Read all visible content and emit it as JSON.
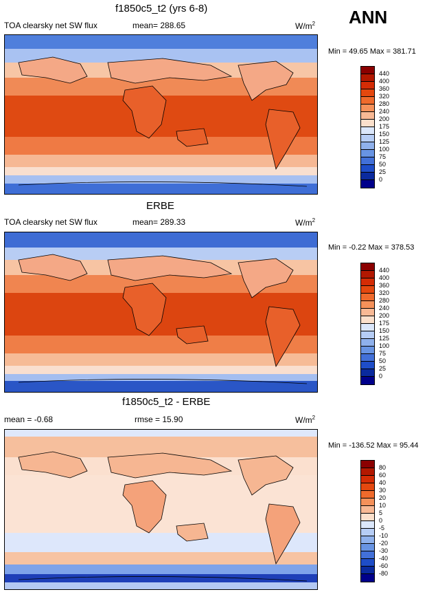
{
  "season": "ANN",
  "panels": [
    {
      "title": "f1850c5_t2 (yrs 6-8)",
      "left_label": "TOA clearsky net SW flux",
      "center_label": "mean= 288.65",
      "units": "W/m",
      "units_sup": "2",
      "stats": "Min =  49.65 Max = 381.71",
      "colorbar": {
        "labels": [
          "440",
          "400",
          "360",
          "320",
          "280",
          "240",
          "200",
          "175",
          "150",
          "125",
          "100",
          "75",
          "50",
          "25",
          "0"
        ],
        "colors": [
          "#8b0000",
          "#b31800",
          "#d42c05",
          "#e4480f",
          "#ef6a2c",
          "#f5915a",
          "#f8b995",
          "#fbe0cc",
          "#dbe7fb",
          "#b6cdf5",
          "#8fb1ec",
          "#6894e3",
          "#4270d8",
          "#1e4dc8",
          "#0a2a9e",
          "#00008b"
        ]
      }
    },
    {
      "title": "ERBE",
      "left_label": "TOA clearsky net SW flux",
      "center_label": "mean= 289.33",
      "units": "W/m",
      "units_sup": "2",
      "stats": "Min =  -0.22 Max = 378.53",
      "colorbar": {
        "labels": [
          "440",
          "400",
          "360",
          "320",
          "280",
          "240",
          "200",
          "175",
          "150",
          "125",
          "100",
          "75",
          "50",
          "25",
          "0"
        ],
        "colors": [
          "#8b0000",
          "#b31800",
          "#d42c05",
          "#e4480f",
          "#ef6a2c",
          "#f5915a",
          "#f8b995",
          "#fbe0cc",
          "#dbe7fb",
          "#b6cdf5",
          "#8fb1ec",
          "#6894e3",
          "#4270d8",
          "#1e4dc8",
          "#0a2a9e",
          "#00008b"
        ]
      }
    },
    {
      "title": "f1850c5_t2 - ERBE",
      "left_label": "mean =  -0.68",
      "center_label": "rmse =  15.90",
      "units": "W/m",
      "units_sup": "2",
      "stats": "Min = -136.52 Max =  95.44",
      "colorbar": {
        "labels": [
          "80",
          "60",
          "40",
          "30",
          "20",
          "10",
          "5",
          "0",
          "-5",
          "-10",
          "-20",
          "-30",
          "-40",
          "-60",
          "-80"
        ],
        "colors": [
          "#8b0000",
          "#b31800",
          "#d42c05",
          "#e4480f",
          "#ef6a2c",
          "#f5915a",
          "#f8b995",
          "#fbe0cc",
          "#dbe7fb",
          "#b6cdf5",
          "#8fb1ec",
          "#6894e3",
          "#4270d8",
          "#1e4dc8",
          "#0a2a9e",
          "#00008b"
        ]
      }
    }
  ]
}
